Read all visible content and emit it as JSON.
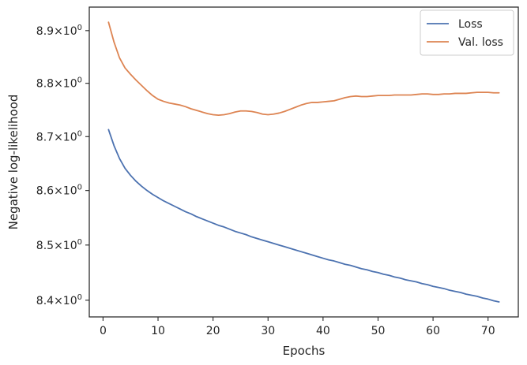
{
  "chart_data": {
    "type": "line",
    "xlabel": "Epochs",
    "ylabel": "Negative log-likelihood",
    "yscale": "log",
    "xlim": [
      -2.5,
      75.5
    ],
    "ylim": [
      8.37,
      8.945
    ],
    "grid": false,
    "legend_position": "top-right",
    "x_ticks": [
      {
        "value": 0,
        "label": "0"
      },
      {
        "value": 10,
        "label": "10"
      },
      {
        "value": 20,
        "label": "20"
      },
      {
        "value": 30,
        "label": "30"
      },
      {
        "value": 40,
        "label": "40"
      },
      {
        "value": 50,
        "label": "50"
      },
      {
        "value": 60,
        "label": "60"
      },
      {
        "value": 70,
        "label": "70"
      }
    ],
    "y_ticks": [
      {
        "value": 8.4,
        "base": "8.4",
        "times": "×",
        "power": "10",
        "exp": "0"
      },
      {
        "value": 8.5,
        "base": "8.5",
        "times": "×",
        "power": "10",
        "exp": "0"
      },
      {
        "value": 8.6,
        "base": "8.6",
        "times": "×",
        "power": "10",
        "exp": "0"
      },
      {
        "value": 8.7,
        "base": "8.7",
        "times": "×",
        "power": "10",
        "exp": "0"
      },
      {
        "value": 8.8,
        "base": "8.8",
        "times": "×",
        "power": "10",
        "exp": "0"
      },
      {
        "value": 8.9,
        "base": "8.9",
        "times": "×",
        "power": "10",
        "exp": "0"
      }
    ],
    "x": [
      1,
      2,
      3,
      4,
      5,
      6,
      7,
      8,
      9,
      10,
      11,
      12,
      13,
      14,
      15,
      16,
      17,
      18,
      19,
      20,
      21,
      22,
      23,
      24,
      25,
      26,
      27,
      28,
      29,
      30,
      31,
      32,
      33,
      34,
      35,
      36,
      37,
      38,
      39,
      40,
      41,
      42,
      43,
      44,
      45,
      46,
      47,
      48,
      49,
      50,
      51,
      52,
      53,
      54,
      55,
      56,
      57,
      58,
      59,
      60,
      61,
      62,
      63,
      64,
      65,
      66,
      67,
      68,
      69,
      70,
      71,
      72
    ],
    "series": [
      {
        "name": "Loss",
        "color": "#4c72b0",
        "values": [
          8.713,
          8.683,
          8.659,
          8.641,
          8.628,
          8.617,
          8.608,
          8.6,
          8.593,
          8.587,
          8.581,
          8.576,
          8.571,
          8.566,
          8.561,
          8.557,
          8.552,
          8.548,
          8.544,
          8.54,
          8.536,
          8.533,
          8.529,
          8.525,
          8.522,
          8.519,
          8.515,
          8.512,
          8.509,
          8.506,
          8.503,
          8.5,
          8.497,
          8.494,
          8.491,
          8.488,
          8.485,
          8.482,
          8.479,
          8.476,
          8.473,
          8.471,
          8.468,
          8.465,
          8.463,
          8.46,
          8.457,
          8.455,
          8.452,
          8.45,
          8.447,
          8.445,
          8.442,
          8.44,
          8.437,
          8.435,
          8.433,
          8.43,
          8.428,
          8.425,
          8.423,
          8.421,
          8.418,
          8.416,
          8.414,
          8.411,
          8.409,
          8.407,
          8.404,
          8.402,
          8.399,
          8.397
        ]
      },
      {
        "name": "Val. loss",
        "color": "#dd8452",
        "values": [
          8.916,
          8.878,
          8.848,
          8.829,
          8.817,
          8.806,
          8.796,
          8.786,
          8.777,
          8.77,
          8.766,
          8.763,
          8.761,
          8.759,
          8.756,
          8.752,
          8.749,
          8.746,
          8.743,
          8.741,
          8.74,
          8.741,
          8.743,
          8.746,
          8.748,
          8.748,
          8.747,
          8.745,
          8.742,
          8.741,
          8.742,
          8.744,
          8.747,
          8.751,
          8.755,
          8.759,
          8.762,
          8.764,
          8.764,
          8.765,
          8.766,
          8.767,
          8.77,
          8.773,
          8.775,
          8.776,
          8.775,
          8.775,
          8.776,
          8.777,
          8.777,
          8.777,
          8.778,
          8.778,
          8.778,
          8.778,
          8.779,
          8.78,
          8.78,
          8.779,
          8.779,
          8.78,
          8.78,
          8.781,
          8.781,
          8.781,
          8.782,
          8.783,
          8.783,
          8.783,
          8.782,
          8.782
        ]
      }
    ]
  }
}
